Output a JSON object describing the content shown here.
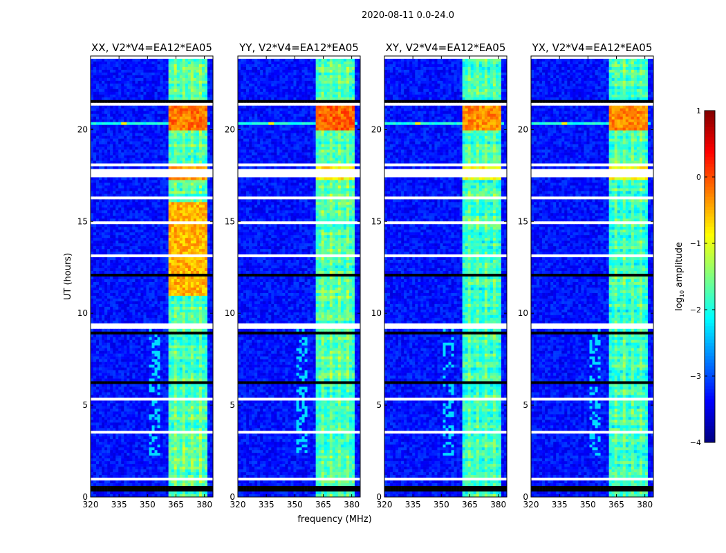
{
  "chart_data": {
    "type": "heatmap",
    "title": "2020-08-11 0.0-24.0",
    "xlabel": "frequency (MHz)",
    "ylabel": "UT (hours)",
    "xlim": [
      320,
      384.5
    ],
    "ylim": [
      0,
      24
    ],
    "xticks": [
      320,
      335,
      350,
      365,
      380
    ],
    "yticks": [
      0,
      5,
      10,
      15,
      20
    ],
    "panels": [
      {
        "title": "XX, V2*V4=EA12*EA05",
        "band_level": -1.8,
        "hot_periods": [
          [
            11.0,
            16.0,
            -0.5
          ],
          [
            17.3,
            18.0,
            -0.4
          ],
          [
            20.0,
            21.5,
            -0.2
          ]
        ]
      },
      {
        "title": "YY, V2*V4=EA12*EA05",
        "band_level": -1.8,
        "hot_periods": [
          [
            17.3,
            18.0,
            -0.8
          ],
          [
            20.0,
            21.5,
            -0.1
          ]
        ]
      },
      {
        "title": "XY, V2*V4=EA12*EA05",
        "band_level": -1.9,
        "hot_periods": [
          [
            17.3,
            18.0,
            -0.9
          ],
          [
            20.0,
            21.5,
            -0.3
          ]
        ]
      },
      {
        "title": "YX, V2*V4=EA12*EA05",
        "band_level": -1.9,
        "hot_periods": [
          [
            17.3,
            18.0,
            -0.9
          ],
          [
            20.0,
            21.5,
            -0.3
          ]
        ]
      }
    ],
    "background_level": -3.3,
    "band_range_mhz": [
      361,
      381
    ],
    "rfi_line_hours": 20.3,
    "rfi_spike_mhz": 338,
    "vertical_rfi_mhz": [
      350.5,
      357
    ],
    "vertical_rfi_hours": [
      2.2,
      9.3
    ],
    "flagged_hours": [
      [
        0.85,
        1.0
      ],
      [
        9.2,
        9.5
      ],
      [
        17.4,
        17.9
      ],
      [
        12.4,
        12.5
      ],
      [
        13.1,
        13.2
      ],
      [
        18.0,
        18.1
      ],
      [
        22.9,
        23.0
      ],
      [
        23.8,
        24.0
      ],
      [
        3.5,
        3.6
      ],
      [
        5.3,
        5.4
      ],
      [
        7.9,
        8.0
      ],
      [
        14.9,
        15.0
      ],
      [
        16.2,
        16.3
      ],
      [
        19.0,
        19.1
      ],
      [
        21.3,
        21.4
      ]
    ],
    "zero_hours": [
      [
        0.3,
        0.6
      ],
      [
        8.8,
        9.0
      ],
      [
        6.2,
        6.3
      ],
      [
        10.0,
        10.08
      ],
      [
        21.5,
        21.6
      ],
      [
        12.0,
        12.1
      ]
    ],
    "colorbar": {
      "label": "log10 amplitude",
      "label_main": "log",
      "label_sub": "10",
      "label_rest": " amplitude",
      "range": [
        -4,
        1
      ],
      "ticks": [
        1,
        0,
        -1,
        -2,
        -3,
        -4
      ],
      "tick_labels": [
        "1",
        "0",
        "−1",
        "−2",
        "−3",
        "−4"
      ],
      "colormap": "jet"
    }
  }
}
